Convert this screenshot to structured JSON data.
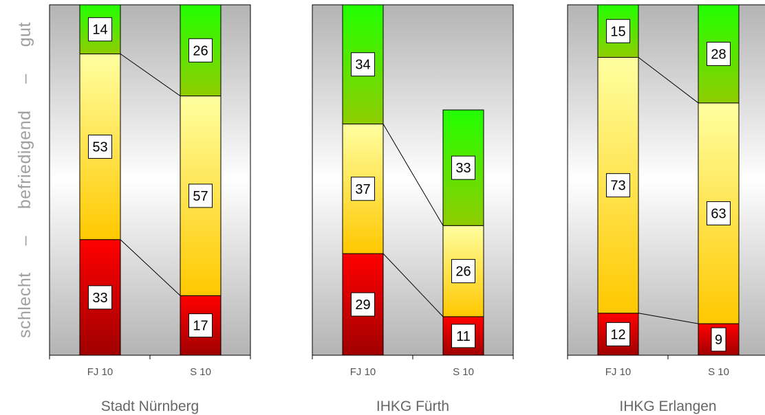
{
  "y_axis_title": {
    "bad": "schlecht",
    "dash1": "–",
    "mid": "befriedigend",
    "dash2": "–",
    "good": "gut"
  },
  "colors": {
    "panel_edge": "#b4b4b4",
    "panel_center": "#ffffff",
    "green_top": "#22ff00",
    "green_bottom": "#90cc00",
    "yellow_top": "#ffffa0",
    "yellow_bottom": "#ffc800",
    "red_top": "#ff0000",
    "red_bottom": "#a00000"
  },
  "chart_data": [
    {
      "type": "bar",
      "stacked": true,
      "normalized_percent": true,
      "title": "Stadt Nürnberg",
      "categories": [
        "FJ 10",
        "S 10"
      ],
      "series": [
        {
          "name": "schlecht",
          "values": [
            33,
            17
          ]
        },
        {
          "name": "befriedigend",
          "values": [
            53,
            57
          ]
        },
        {
          "name": "gut",
          "values": [
            14,
            26
          ]
        }
      ],
      "ylim": [
        0,
        100
      ]
    },
    {
      "type": "bar",
      "stacked": true,
      "normalized_percent": true,
      "title": "IHKG Fürth",
      "categories": [
        "FJ 10",
        "S 10"
      ],
      "series": [
        {
          "name": "schlecht",
          "values": [
            29,
            11
          ]
        },
        {
          "name": "befriedigend",
          "values": [
            37,
            26
          ]
        },
        {
          "name": "gut",
          "values": [
            34,
            33
          ]
        }
      ],
      "ylim": [
        0,
        100
      ]
    },
    {
      "type": "bar",
      "stacked": true,
      "normalized_percent": true,
      "title": "IHKG Erlangen",
      "categories": [
        "FJ 10",
        "S 10"
      ],
      "series": [
        {
          "name": "schlecht",
          "values": [
            12,
            9
          ]
        },
        {
          "name": "befriedigend",
          "values": [
            73,
            63
          ]
        },
        {
          "name": "gut",
          "values": [
            15,
            28
          ]
        }
      ],
      "ylim": [
        0,
        100
      ]
    }
  ]
}
